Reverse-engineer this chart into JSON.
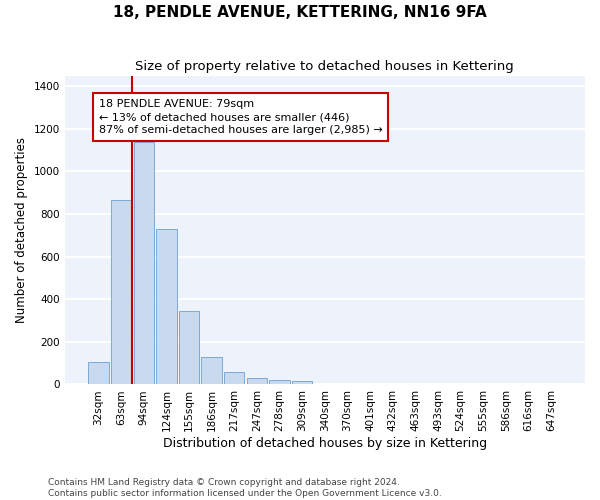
{
  "title": "18, PENDLE AVENUE, KETTERING, NN16 9FA",
  "subtitle": "Size of property relative to detached houses in Kettering",
  "xlabel": "Distribution of detached houses by size in Kettering",
  "ylabel": "Number of detached properties",
  "categories": [
    "32sqm",
    "63sqm",
    "94sqm",
    "124sqm",
    "155sqm",
    "186sqm",
    "217sqm",
    "247sqm",
    "278sqm",
    "309sqm",
    "340sqm",
    "370sqm",
    "401sqm",
    "432sqm",
    "463sqm",
    "493sqm",
    "524sqm",
    "555sqm",
    "586sqm",
    "616sqm",
    "647sqm"
  ],
  "values": [
    105,
    865,
    1140,
    730,
    345,
    130,
    60,
    32,
    20,
    17,
    0,
    0,
    0,
    0,
    0,
    0,
    0,
    0,
    0,
    0,
    0
  ],
  "bar_color": "#c9d9ee",
  "bar_edge_color": "#7aabda",
  "vline_x": 1.5,
  "vline_color": "#cc0000",
  "annotation_text": "18 PENDLE AVENUE: 79sqm\n← 13% of detached houses are smaller (446)\n87% of semi-detached houses are larger (2,985) →",
  "annotation_box_facecolor": "#ffffff",
  "annotation_box_edgecolor": "#cc0000",
  "ylim_max": 1450,
  "yticks": [
    0,
    200,
    400,
    600,
    800,
    1000,
    1200,
    1400
  ],
  "fig_bg": "#ffffff",
  "plot_bg": "#eef2fb",
  "grid_color": "#ffffff",
  "footer_line1": "Contains HM Land Registry data © Crown copyright and database right 2024.",
  "footer_line2": "Contains public sector information licensed under the Open Government Licence v3.0.",
  "title_fontsize": 11,
  "subtitle_fontsize": 9.5,
  "xlabel_fontsize": 9,
  "ylabel_fontsize": 8.5,
  "tick_fontsize": 7.5,
  "annotation_fontsize": 8,
  "footer_fontsize": 6.5
}
